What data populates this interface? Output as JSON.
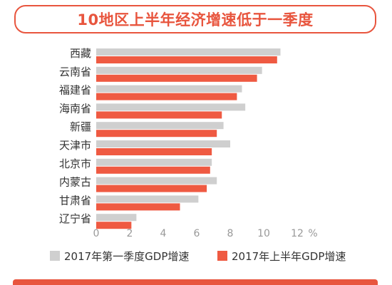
{
  "title": "10地区上半年经济增速低于一季度",
  "colors": {
    "accent": "#e8553e",
    "series_q1": "#cfcfcf",
    "series_h1": "#ef5a42"
  },
  "chart_data": {
    "type": "bar",
    "orientation": "horizontal",
    "categories": [
      "西藏",
      "云南省",
      "福建省",
      "海南省",
      "新疆",
      "天津市",
      "北京市",
      "内蒙古",
      "甘肃省",
      "辽宁省"
    ],
    "series": [
      {
        "name": "2017年第一季度GDP增速",
        "values": [
          11.0,
          9.9,
          8.7,
          8.9,
          7.6,
          8.0,
          6.9,
          7.2,
          6.1,
          2.4
        ]
      },
      {
        "name": "2017年上半年GDP增速",
        "values": [
          10.8,
          9.6,
          8.4,
          7.5,
          7.2,
          6.9,
          6.8,
          6.6,
          5.0,
          2.1
        ]
      }
    ],
    "xlim": [
      0,
      12
    ],
    "xticks": [
      0,
      2,
      4,
      6,
      8,
      10,
      12
    ],
    "xunit": "%",
    "legend_position": "bottom",
    "grid": false
  }
}
